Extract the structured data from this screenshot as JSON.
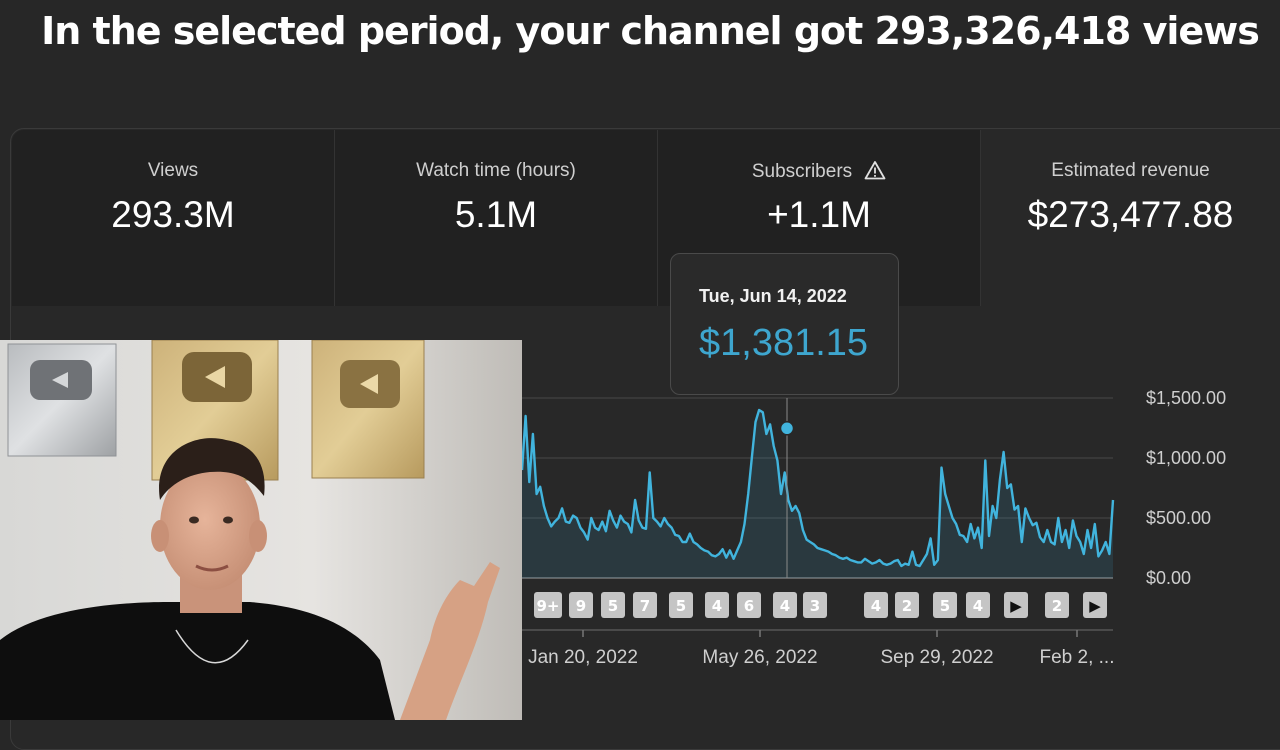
{
  "headline": "In the selected period, your channel got 293,326,418 views",
  "metrics": [
    {
      "label": "Views",
      "value": "293.3M"
    },
    {
      "label": "Watch time (hours)",
      "value": "5.1M"
    },
    {
      "label": "Subscribers",
      "value": "+1.1M",
      "icon": "warning-icon"
    },
    {
      "label": "Estimated revenue",
      "value": "$273,477.88"
    }
  ],
  "tooltip": {
    "date": "Tue, Jun 14, 2022",
    "value": "$1,381.15"
  },
  "colors": {
    "series": "#41b4dd",
    "accent_text": "#3ea6cf",
    "background": "#272727"
  },
  "chart_data": {
    "type": "area",
    "y_tick_labels": [
      "$1,500.00",
      "$1,000.00",
      "$500.00",
      "$0.00"
    ],
    "ylim": [
      0,
      1500
    ],
    "x_tick_labels": [
      "Jan 20, 2022",
      "May 26, 2022",
      "Sep 29, 2022",
      "Feb 2, ..."
    ],
    "highlight": {
      "date": "Jun 14, 2022",
      "value": 1381.15
    },
    "series": [
      {
        "values": [
          900,
          1350,
          800,
          1200,
          700,
          760,
          600,
          500,
          430,
          470,
          500,
          580,
          470,
          460,
          520,
          500,
          420,
          380,
          320,
          500,
          420,
          400,
          470,
          390,
          560,
          480,
          420,
          520,
          470,
          450,
          380,
          650,
          480,
          420,
          410,
          880,
          500,
          470,
          430,
          500,
          450,
          420,
          360,
          350,
          300,
          300,
          370,
          300,
          280,
          250,
          230,
          220,
          190,
          180,
          200,
          240,
          170,
          230,
          160,
          230,
          300,
          450,
          700,
          1000,
          1300,
          1400,
          1381,
          1200,
          1280,
          1100,
          980,
          700,
          880,
          650,
          560,
          600,
          540,
          400,
          320,
          300,
          280,
          250,
          240,
          230,
          220,
          200,
          190,
          170,
          160,
          170,
          150,
          140,
          130,
          130,
          160,
          140,
          120,
          130,
          150,
          120,
          110,
          120,
          140,
          150,
          100,
          120,
          110,
          220,
          110,
          100,
          150,
          200,
          330,
          110,
          150,
          920,
          700,
          600,
          500,
          450,
          360,
          350,
          300,
          450,
          330,
          420,
          250,
          980,
          350,
          600,
          500,
          820,
          1050,
          750,
          780,
          570,
          600,
          300,
          580,
          500,
          440,
          460,
          340,
          300,
          400,
          300,
          280,
          500,
          300,
          400,
          250,
          480,
          350,
          300,
          200,
          400,
          250,
          450,
          180,
          230,
          300,
          200,
          650
        ]
      }
    ],
    "annotation_badges": [
      "9+",
      "9",
      "5",
      "7",
      "5",
      "4",
      "6",
      "4",
      "3",
      "4",
      "2",
      "5",
      "4",
      "▶",
      "2",
      "▶"
    ]
  }
}
